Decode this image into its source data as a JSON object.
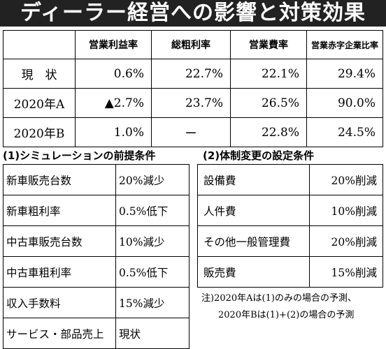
{
  "title": "ディーラー経営への影響と対策効果",
  "chart_data": {
    "type": "table",
    "columns": [
      "",
      "営業利益率",
      "総粗利率",
      "営業費率",
      "営業赤字企業比率"
    ],
    "rows": [
      {
        "label": "現　状",
        "values": [
          "0.6%",
          "22.7%",
          "22.1%",
          "29.4%"
        ]
      },
      {
        "label": "2020年A",
        "values": [
          "▲2.7%",
          "23.7%",
          "26.5%",
          "90.0%"
        ]
      },
      {
        "label": "2020年B",
        "values": [
          "1.0%",
          "ー",
          "22.8%",
          "24.5%"
        ]
      }
    ]
  },
  "sim": {
    "heading": "(1)シミュレーションの前提条件",
    "rows": [
      {
        "item": "新車販売台数",
        "value": "20%減少"
      },
      {
        "item": "新車粗利率",
        "value": "0.5%低下"
      },
      {
        "item": "中古車販売台数",
        "value": "10%減少"
      },
      {
        "item": "中古車粗利率",
        "value": "0.5%低下"
      },
      {
        "item": "収入手数料",
        "value": "15%減少"
      },
      {
        "item": "サービス・部品売上",
        "value": "現状"
      }
    ]
  },
  "sys": {
    "heading": "(2)体制変更の設定条件",
    "rows": [
      {
        "item": "設備費",
        "value": "20%削減"
      },
      {
        "item": "人件費",
        "value": "10%削減"
      },
      {
        "item": "その他一般管理費",
        "value": "20%削減"
      },
      {
        "item": "販売費",
        "value": "15%削減"
      }
    ]
  },
  "notes": [
    "注)2020年Aは(1)のみの場合の予測、",
    "2020年Bは(1)+(2)の場合の予測"
  ]
}
